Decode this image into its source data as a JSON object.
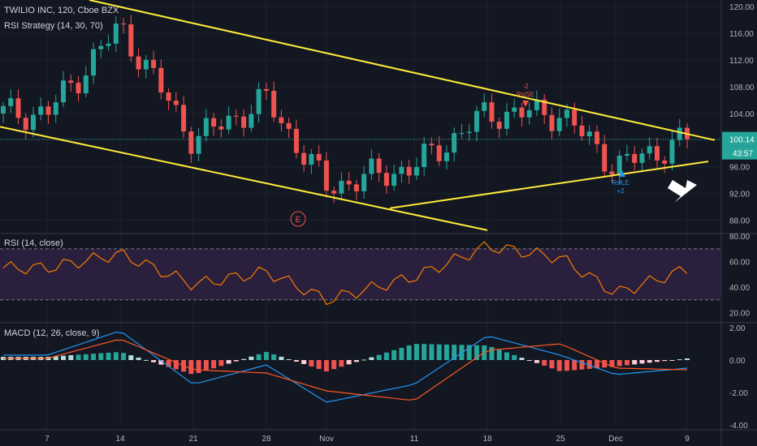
{
  "header": {
    "symbol_line": "TWILIO INC, 120, Cboe BZX",
    "strategy_line": "RSI Strategy (14, 30, 70)"
  },
  "price_axis": {
    "ticks": [
      "120.00",
      "116.00",
      "112.00",
      "108.00",
      "104.00",
      "96.00",
      "92.00",
      "88.00"
    ],
    "last_price": "100.14",
    "countdown": "43:57",
    "last_color": "#26a69a"
  },
  "rsi_pane": {
    "title": "RSI (14, close)",
    "ticks": [
      "80.00",
      "60.00",
      "40.00",
      "20.00"
    ],
    "upper": 70,
    "lower": 30
  },
  "macd_pane": {
    "title": "MACD (12, 26, close, 9)",
    "ticks": [
      "2.00",
      "0.00",
      "-2.00",
      "-4.00"
    ]
  },
  "x_axis": {
    "ticks": [
      "7",
      "14",
      "21",
      "28",
      "Nov",
      "11",
      "18",
      "25",
      "Dec",
      "9"
    ]
  },
  "markers": {
    "earnings": "E",
    "sell_top": "-2",
    "sell_label": "RsiSE",
    "buy_label": "RsiLE",
    "buy_bottom": "+2"
  },
  "colors": {
    "background": "#131722",
    "up": "#26a69a",
    "down": "#ef5350",
    "trendline": "#ffeb3b",
    "rsi_line": "#f57c00",
    "rsi_band": "#2a1f3d",
    "macd_line": "#2196f3",
    "signal_line": "#ff5722"
  },
  "chart_data": [
    {
      "type": "candlestick",
      "x": [
        "7",
        "14",
        "21",
        "28",
        "Nov",
        "11",
        "18",
        "25",
        "Dec",
        "9"
      ],
      "close": [
        104,
        117,
        100,
        106,
        93,
        96,
        104,
        104,
        96,
        100.14
      ],
      "ylim": [
        86,
        121
      ],
      "last": 100.14
    },
    {
      "type": "line",
      "title": "RSI (14, close)",
      "x": [
        "7",
        "14",
        "21",
        "28",
        "Nov",
        "11",
        "18",
        "25",
        "Dec",
        "9"
      ],
      "values": [
        55,
        66,
        42,
        52,
        30,
        48,
        72,
        63,
        35,
        54
      ],
      "ylim": [
        12,
        82
      ],
      "bands": [
        30,
        70
      ]
    },
    {
      "type": "line",
      "title": "MACD (12, 26, close, 9)",
      "x": [
        "7",
        "14",
        "21",
        "28",
        "Nov",
        "11",
        "18",
        "25",
        "Dec",
        "9"
      ],
      "macd": [
        0.3,
        1.8,
        -1.5,
        -0.3,
        -2.6,
        -1.5,
        1.5,
        0.3,
        -0.9,
        -0.5
      ],
      "signal": [
        0.1,
        1.3,
        -0.6,
        -0.8,
        -1.9,
        -2.5,
        0.6,
        1.0,
        -0.5,
        -0.6
      ],
      "ylim": [
        -4.3,
        2.3
      ]
    }
  ]
}
